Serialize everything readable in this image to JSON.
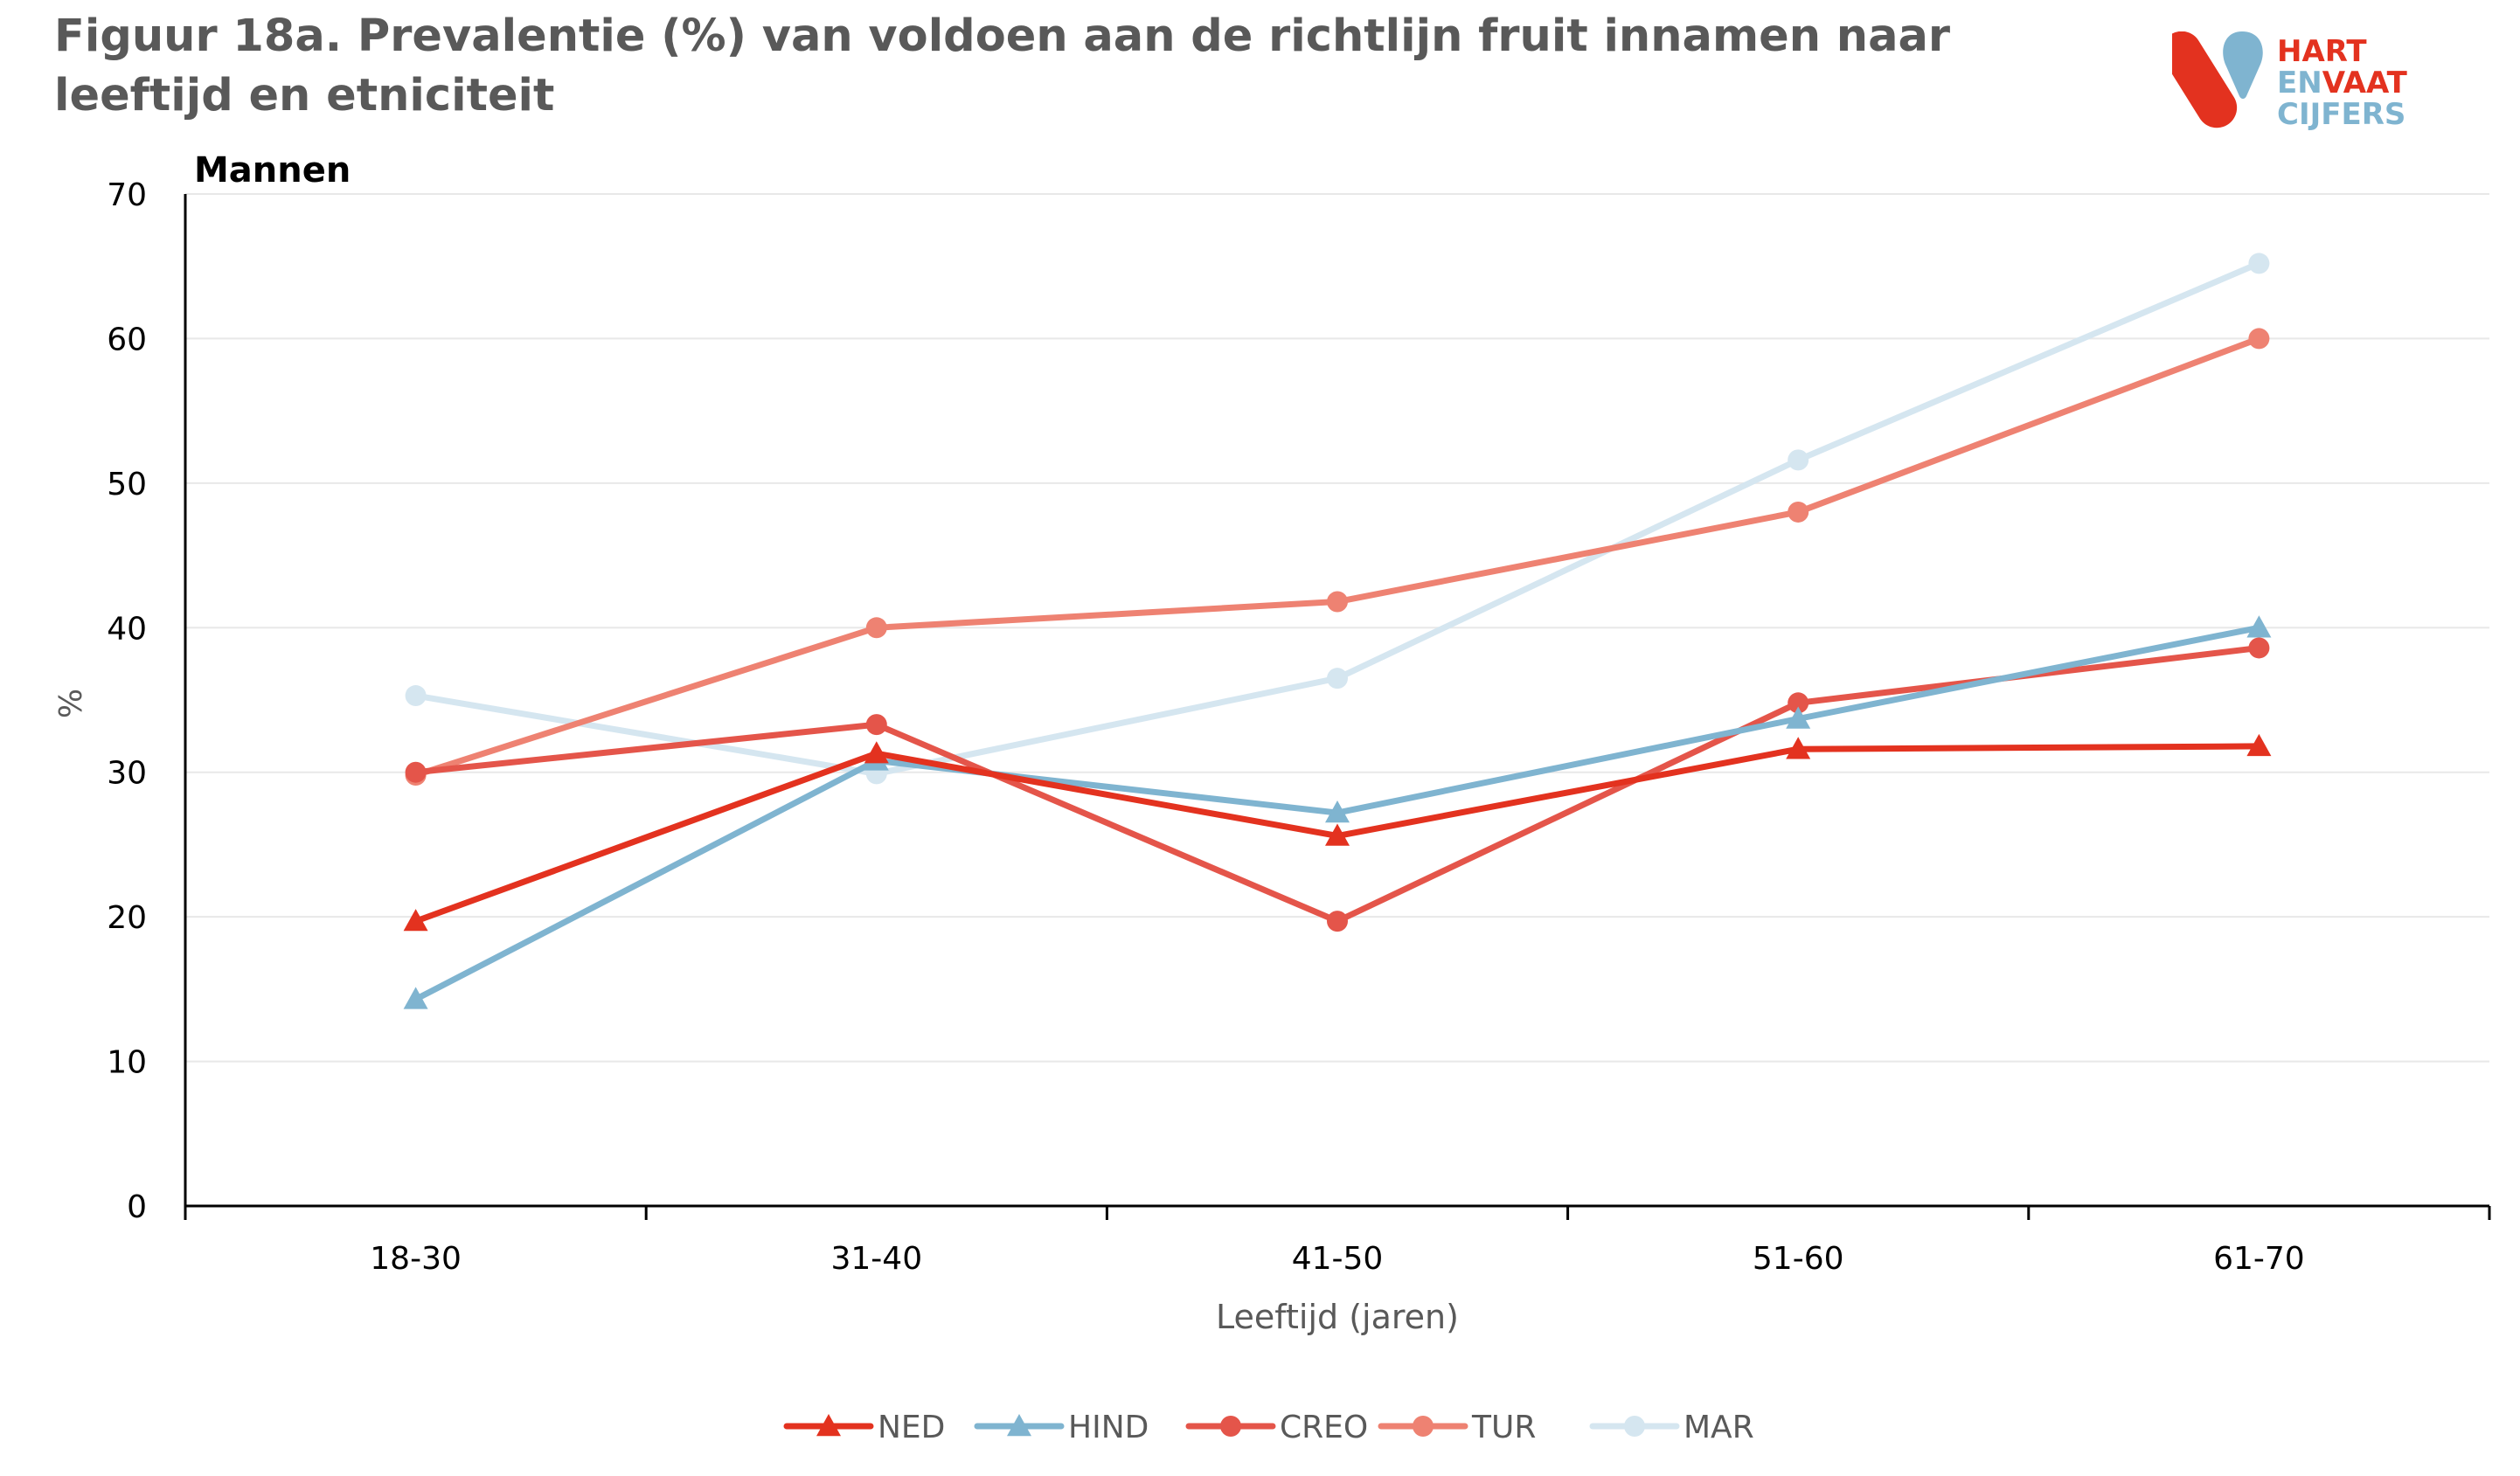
{
  "title": "Figuur 18a. Prevalentie (%) van  voldoen aan de richtlijn fruit innamen naar leeftijd en etniciteit",
  "logo": {
    "line1": "HART",
    "line2_a": "EN",
    "line2_b": "VAAT",
    "line3": "CIJFERS"
  },
  "colors": {
    "title": "#595959",
    "logo_red": "#e3321f",
    "logo_blue": "#7fb4d0"
  },
  "chart_data": {
    "type": "line",
    "title": "",
    "subtitle": "Mannen",
    "xlabel": "Leeftijd (jaren)",
    "ylabel": "%",
    "categories": [
      "18-30",
      "31-40",
      "41-50",
      "51-60",
      "61-70"
    ],
    "ylim": [
      0,
      70
    ],
    "yticks": [
      0,
      10,
      20,
      30,
      40,
      50,
      60,
      70
    ],
    "grid": true,
    "legend_position": "bottom",
    "series": [
      {
        "name": "NED",
        "values": [
          19.7,
          31.3,
          25.6,
          31.6,
          31.8
        ],
        "color": "#e3321f",
        "marker": "triangle"
      },
      {
        "name": "HIND",
        "values": [
          14.3,
          30.8,
          27.2,
          33.7,
          40.0
        ],
        "color": "#7fb4d0",
        "marker": "triangle"
      },
      {
        "name": "CREO",
        "values": [
          30.0,
          33.3,
          19.7,
          34.8,
          38.6
        ],
        "color": "#e4554a",
        "marker": "circle"
      },
      {
        "name": "TUR",
        "values": [
          29.8,
          40.0,
          41.8,
          48.0,
          60.0
        ],
        "color": "#ee8272",
        "marker": "circle"
      },
      {
        "name": "MAR",
        "values": [
          35.3,
          29.9,
          36.5,
          51.6,
          65.2
        ],
        "color": "#d5e6f0",
        "marker": "circle"
      }
    ]
  }
}
